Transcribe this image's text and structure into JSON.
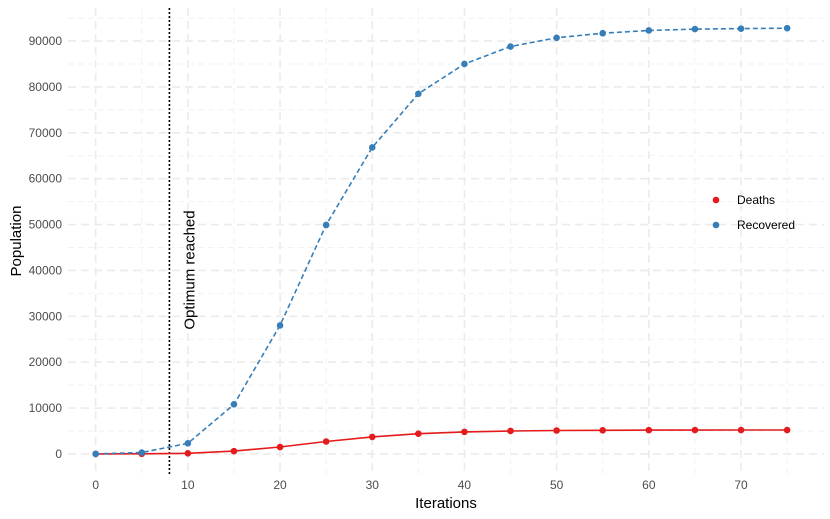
{
  "chart_data": {
    "type": "line",
    "xlabel": "Iterations",
    "ylabel": "Population",
    "x": [
      0,
      5,
      10,
      15,
      20,
      25,
      30,
      35,
      40,
      45,
      50,
      55,
      60,
      65,
      70,
      75
    ],
    "xlim": [
      -3,
      79
    ],
    "ylim": [
      -4600,
      97200
    ],
    "xticks": [
      0,
      10,
      20,
      30,
      40,
      50,
      60,
      70
    ],
    "yticks": [
      0,
      10000,
      20000,
      30000,
      40000,
      50000,
      60000,
      70000,
      80000,
      90000
    ],
    "grid": true,
    "legend_position": "right",
    "series": [
      {
        "name": "Deaths",
        "color": "#e41a1c",
        "line_style": "solid",
        "values": [
          0,
          30,
          130,
          600,
          1500,
          2700,
          3700,
          4400,
          4800,
          5000,
          5100,
          5150,
          5180,
          5190,
          5200,
          5200
        ]
      },
      {
        "name": "Recovered",
        "color": "#377eb8",
        "line_style": "dashed",
        "values": [
          0,
          300,
          2300,
          10800,
          28000,
          49900,
          66800,
          78500,
          85000,
          88800,
          90700,
          91700,
          92300,
          92600,
          92700,
          92800
        ]
      }
    ],
    "vline": {
      "x": 8,
      "label": "Optimum reached",
      "style": "dotted"
    }
  }
}
